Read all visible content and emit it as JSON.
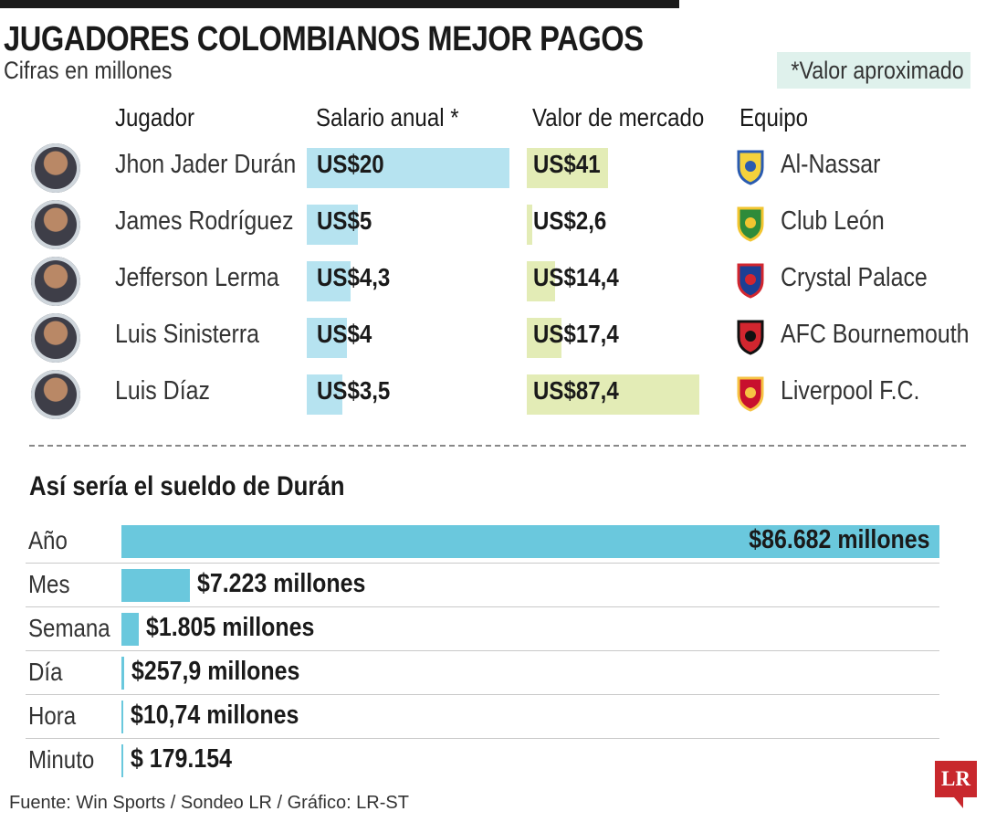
{
  "header": {
    "title": "JUGADORES COLOMBIANOS MEJOR PAGOS",
    "subtitle": "Cifras en millones",
    "note": "*Valor aproximado"
  },
  "columns": {
    "player": "Jugador",
    "salary": "Salario anual *",
    "market": "Valor de mercado",
    "team": "Equipo"
  },
  "players": [
    {
      "name": "Jhon Jader Durán",
      "salary_label": "US$20",
      "market_label": "US$41",
      "team": "Al-Nassar"
    },
    {
      "name": "James Rodríguez",
      "salary_label": "US$5",
      "market_label": "US$2,6",
      "team": "Club León"
    },
    {
      "name": "Jefferson Lerma",
      "salary_label": "US$4,3",
      "market_label": "US$14,4",
      "team": "Crystal Palace"
    },
    {
      "name": "Luis Sinisterra",
      "salary_label": "US$4",
      "market_label": "US$17,4",
      "team": "AFC Bournemouth"
    },
    {
      "name": "Luis Díaz",
      "salary_label": "US$3,5",
      "market_label": "US$87,4",
      "team": "Liverpool F.C."
    }
  ],
  "section2": {
    "title": "Así sería el sueldo de Durán"
  },
  "periods": [
    {
      "label": "Año",
      "value_label": "$86.682 millones"
    },
    {
      "label": "Mes",
      "value_label": "$7.223 millones"
    },
    {
      "label": "Semana",
      "value_label": "$1.805 millones"
    },
    {
      "label": "Día",
      "value_label": "$257,9 millones"
    },
    {
      "label": "Hora",
      "value_label": "$10,74 millones"
    },
    {
      "label": "Minuto",
      "value_label": "$ 179.154"
    }
  ],
  "footer": {
    "source": "Fuente: Win Sports / Sondeo LR / Gráfico: LR-ST",
    "logo": "LR"
  },
  "colors": {
    "salary_bar": "#b6e3f0",
    "market_bar": "#e3ecb6",
    "period_bar": "#6ac8dd",
    "note_bg": "#dff1ec",
    "logo": "#c8282d"
  },
  "chart_data": [
    {
      "type": "bar",
      "title": "Salario anual *",
      "categories": [
        "Jhon Jader Durán",
        "James Rodríguez",
        "Jefferson Lerma",
        "Luis Sinisterra",
        "Luis Díaz"
      ],
      "values": [
        20,
        5,
        4.3,
        4,
        3.5
      ]
    },
    {
      "type": "bar",
      "title": "Valor de mercado",
      "categories": [
        "Jhon Jader Durán",
        "James Rodríguez",
        "Jefferson Lerma",
        "Luis Sinisterra",
        "Luis Díaz"
      ],
      "values": [
        41,
        2.6,
        14.4,
        17.4,
        87.4
      ]
    },
    {
      "type": "bar",
      "title": "Así sería el sueldo de Durán",
      "categories": [
        "Año",
        "Mes",
        "Semana",
        "Día",
        "Hora",
        "Minuto"
      ],
      "values": [
        86682,
        7223,
        1805,
        257.9,
        10.74,
        0.179154
      ]
    }
  ]
}
